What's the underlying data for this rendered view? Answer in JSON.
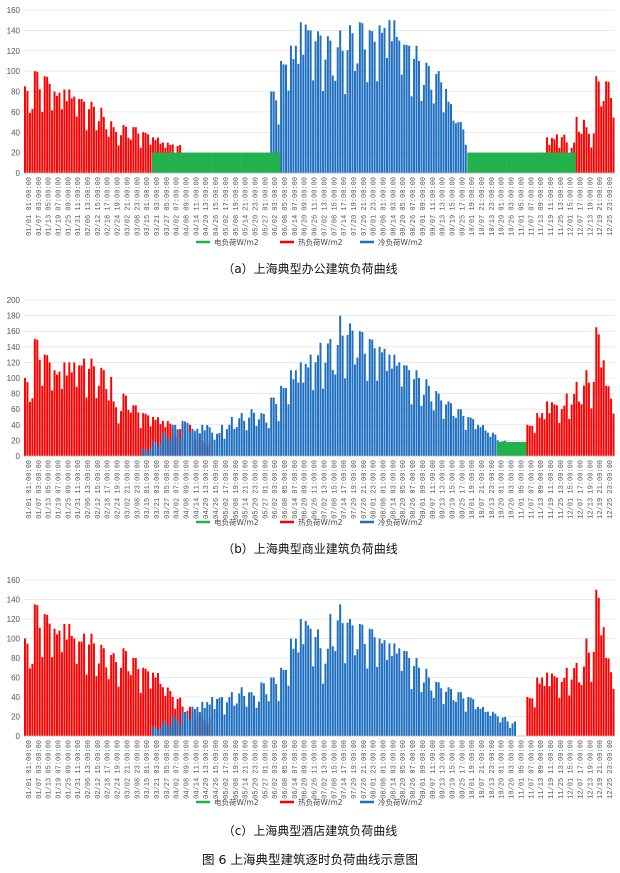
{
  "figure_caption": "图 6 上海典型建筑逐时负荷曲线示意图",
  "colors": {
    "electric": "#22b24c",
    "heat": "#ff0000",
    "cool": "#1f6fc0",
    "grid": "#e4e4e4",
    "axis": "#bbbbbb"
  },
  "chart_data": [
    {
      "type": "bar",
      "caption": "（a）上海典型办公建筑负荷曲线",
      "ylim": [
        0,
        160
      ],
      "yticks": [
        0,
        20,
        40,
        60,
        80,
        100,
        120,
        140,
        160
      ],
      "xtick_labels": [
        "01/01 01:00:00",
        "01/07 03:00:00",
        "01/13 05:00:00",
        "01/19 07:00:00",
        "01/25 09:00:00",
        "01/31 11:00:00",
        "02/06 13:00:00",
        "02/12 15:00:00",
        "02/18 17:00:00",
        "02/24 19:00:00",
        "03/02 21:00:00",
        "03/08 23:00:00",
        "03/15 01:00:00",
        "03/21 03:00:00",
        "03/27 05:00:00",
        "04/02 07:00:00",
        "04/08 09:00:00",
        "04/14 11:00:00",
        "04/20 13:00:00",
        "04/26 15:00:00",
        "05/02 17:00:00",
        "05/08 19:00:00",
        "05/14 21:00:00",
        "05/20 23:00:00",
        "05/27 01:00:00",
        "06/02 03:00:00",
        "06/08 05:00:00",
        "06/14 07:00:00",
        "06/20 09:00:00",
        "06/26 11:00:00",
        "07/02 13:00:00",
        "07/08 15:00:00",
        "07/14 17:00:00",
        "07/20 19:00:00",
        "07/26 21:00:00",
        "08/01 23:00:00",
        "08/08 01:00:00",
        "08/14 03:00:00",
        "08/20 05:00:00",
        "08/26 07:00:00",
        "09/01 09:00:00",
        "09/07 11:00:00",
        "09/13 13:00:00",
        "09/19 15:00:00",
        "09/25 17:00:00",
        "10/01 19:00:00",
        "10/07 21:00:00",
        "10/13 23:00:00",
        "10/20 01:00:00",
        "10/26 03:00:00",
        "11/01 05:00:00",
        "11/07 07:00:00",
        "11/13 09:00:00",
        "11/19 11:00:00",
        "11/25 13:00:00",
        "12/01 15:00:00",
        "12/07 17:00:00",
        "12/13 19:00:00",
        "12/19 21:00:00",
        "12/25 23:00:00"
      ],
      "series": [
        {
          "name": "电负荷W/m2",
          "color": "#22b24c",
          "values": [
            0,
            0,
            0,
            0,
            0,
            0,
            0,
            0,
            0,
            0,
            0,
            0,
            0,
            20,
            20,
            20,
            20,
            20,
            20,
            20,
            20,
            20,
            20,
            20,
            20,
            20,
            0,
            0,
            0,
            0,
            0,
            0,
            0,
            0,
            0,
            0,
            0,
            0,
            0,
            0,
            0,
            0,
            0,
            0,
            0,
            20,
            20,
            20,
            20,
            20,
            20,
            20,
            20,
            20,
            20,
            20,
            0,
            0,
            0,
            0
          ]
        },
        {
          "name": "热负荷W/m2",
          "color": "#ff0000",
          "values": [
            85,
            100,
            95,
            80,
            82,
            75,
            70,
            65,
            55,
            45,
            47,
            45,
            40,
            35,
            30,
            28,
            10,
            5,
            0,
            0,
            0,
            0,
            0,
            0,
            0,
            0,
            0,
            0,
            0,
            0,
            0,
            0,
            0,
            0,
            0,
            0,
            0,
            0,
            0,
            0,
            0,
            0,
            0,
            0,
            0,
            0,
            0,
            0,
            0,
            0,
            0,
            0,
            20,
            35,
            38,
            30,
            55,
            45,
            95,
            90
          ]
        },
        {
          "name": "冷负荷W/m2",
          "color": "#1f6fc0",
          "values": [
            0,
            0,
            0,
            0,
            0,
            0,
            0,
            0,
            0,
            0,
            0,
            0,
            0,
            0,
            0,
            0,
            0,
            0,
            0,
            0,
            0,
            0,
            0,
            0,
            0,
            80,
            110,
            125,
            148,
            140,
            135,
            130,
            140,
            145,
            148,
            140,
            145,
            150,
            130,
            125,
            110,
            105,
            100,
            70,
            50,
            0,
            0,
            0,
            0,
            0,
            0,
            0,
            0,
            0,
            0,
            0,
            0,
            0,
            0,
            0
          ]
        }
      ]
    },
    {
      "type": "bar",
      "caption": "（b）上海典型商业建筑负荷曲线",
      "ylim": [
        0,
        200
      ],
      "yticks": [
        0,
        20,
        40,
        60,
        80,
        100,
        120,
        140,
        160,
        180,
        200
      ],
      "xtick_labels": [
        "01/01 01:00:00",
        "01/07 03:00:00",
        "01/13 05:00:00",
        "01/19 07:00:00",
        "01/25 09:00:00",
        "01/31 11:00:00",
        "02/06 13:00:00",
        "02/12 15:00:00",
        "02/18 17:00:00",
        "02/24 19:00:00",
        "03/02 21:00:00",
        "03/08 23:00:00",
        "03/15 01:00:00",
        "03/21 03:00:00",
        "03/27 05:00:00",
        "04/02 07:00:00",
        "04/08 09:00:00",
        "04/14 11:00:00",
        "04/20 13:00:00",
        "04/26 15:00:00",
        "05/02 17:00:00",
        "05/08 19:00:00",
        "05/14 21:00:00",
        "05/20 23:00:00",
        "05/27 01:00:00",
        "06/02 03:00:00",
        "06/08 05:00:00",
        "06/14 07:00:00",
        "06/20 09:00:00",
        "06/26 11:00:00",
        "07/02 13:00:00",
        "07/08 15:00:00",
        "07/14 17:00:00",
        "07/20 19:00:00",
        "07/26 21:00:00",
        "08/01 23:00:00",
        "08/08 01:00:00",
        "08/14 03:00:00",
        "08/20 05:00:00",
        "08/26 07:00:00",
        "09/01 09:00:00",
        "09/07 11:00:00",
        "09/13 13:00:00",
        "09/19 15:00:00",
        "09/25 17:00:00",
        "10/01 19:00:00",
        "10/07 21:00:00",
        "10/13 23:00:00",
        "10/20 01:00:00",
        "10/26 03:00:00",
        "11/01 05:00:00",
        "11/07 07:00:00",
        "11/13 09:00:00",
        "11/19 11:00:00",
        "11/25 13:00:00",
        "12/01 15:00:00",
        "12/07 17:00:00",
        "12/13 19:00:00",
        "12/19 21:00:00",
        "12/25 23:00:00"
      ],
      "series": [
        {
          "name": "电负荷W/m2",
          "color": "#22b24c",
          "values": [
            0,
            0,
            0,
            0,
            0,
            0,
            0,
            0,
            0,
            0,
            0,
            0,
            0,
            0,
            0,
            0,
            0,
            0,
            0,
            0,
            0,
            0,
            0,
            0,
            0,
            0,
            0,
            0,
            0,
            0,
            0,
            0,
            0,
            0,
            0,
            0,
            0,
            0,
            0,
            0,
            0,
            0,
            0,
            0,
            0,
            0,
            0,
            0,
            18,
            18,
            18,
            0,
            0,
            0,
            0,
            0,
            0,
            0,
            0,
            0
          ]
        },
        {
          "name": "热负荷W/m2",
          "color": "#ff0000",
          "values": [
            100,
            150,
            130,
            110,
            120,
            120,
            125,
            115,
            110,
            70,
            80,
            65,
            55,
            50,
            45,
            35,
            40,
            30,
            20,
            0,
            0,
            0,
            0,
            0,
            0,
            0,
            0,
            0,
            0,
            0,
            0,
            0,
            0,
            0,
            0,
            0,
            0,
            0,
            0,
            0,
            0,
            0,
            0,
            0,
            0,
            0,
            0,
            0,
            0,
            0,
            0,
            40,
            55,
            70,
            65,
            80,
            95,
            110,
            165,
            90
          ]
        },
        {
          "name": "冷负荷W/m2",
          "color": "#1f6fc0",
          "values": [
            0,
            0,
            0,
            0,
            0,
            0,
            0,
            0,
            0,
            0,
            0,
            0,
            10,
            20,
            30,
            40,
            45,
            35,
            40,
            30,
            40,
            50,
            55,
            60,
            55,
            75,
            90,
            110,
            120,
            130,
            145,
            150,
            180,
            170,
            160,
            150,
            140,
            130,
            120,
            110,
            100,
            90,
            80,
            70,
            60,
            50,
            40,
            30,
            20,
            10,
            0,
            0,
            0,
            0,
            0,
            0,
            0,
            0,
            0,
            0
          ]
        }
      ]
    },
    {
      "type": "bar",
      "caption": "（c）上海典型酒店建筑负荷曲线",
      "ylim": [
        0,
        160
      ],
      "yticks": [
        0,
        20,
        40,
        60,
        80,
        100,
        120,
        140,
        160
      ],
      "xtick_labels": [
        "01/01 01:00:00",
        "01/07 03:00:00",
        "01/13 05:00:00",
        "01/19 07:00:00",
        "01/25 09:00:00",
        "01/31 11:00:00",
        "02/06 13:00:00",
        "02/12 15:00:00",
        "02/18 17:00:00",
        "02/24 19:00:00",
        "03/02 21:00:00",
        "03/08 23:00:00",
        "03/15 01:00:00",
        "03/21 03:00:00",
        "03/27 05:00:00",
        "04/02 07:00:00",
        "04/08 09:00:00",
        "04/14 11:00:00",
        "04/20 13:00:00",
        "04/26 15:00:00",
        "05/02 17:00:00",
        "05/08 19:00:00",
        "05/14 21:00:00",
        "05/20 23:00:00",
        "05/27 01:00:00",
        "06/02 03:00:00",
        "06/08 05:00:00",
        "06/14 07:00:00",
        "06/20 09:00:00",
        "06/26 11:00:00",
        "07/02 13:00:00",
        "07/08 15:00:00",
        "07/14 17:00:00",
        "07/20 19:00:00",
        "07/26 21:00:00",
        "08/01 23:00:00",
        "08/08 01:00:00",
        "08/14 03:00:00",
        "08/20 05:00:00",
        "08/26 07:00:00",
        "09/01 09:00:00",
        "09/07 11:00:00",
        "09/13 13:00:00",
        "09/19 15:00:00",
        "09/25 17:00:00",
        "10/01 19:00:00",
        "10/07 21:00:00",
        "10/13 23:00:00",
        "10/20 01:00:00",
        "10/26 03:00:00",
        "11/01 05:00:00",
        "11/07 07:00:00",
        "11/13 09:00:00",
        "11/19 11:00:00",
        "11/25 13:00:00",
        "12/01 15:00:00",
        "12/07 17:00:00",
        "12/13 19:00:00",
        "12/19 21:00:00",
        "12/25 23:00:00"
      ],
      "series": [
        {
          "name": "电负荷W/m2",
          "color": "#22b24c",
          "values": [
            0,
            0,
            0,
            0,
            0,
            0,
            0,
            0,
            0,
            0,
            0,
            0,
            0,
            0,
            0,
            0,
            0,
            0,
            0,
            0,
            0,
            0,
            0,
            0,
            0,
            0,
            0,
            0,
            0,
            0,
            0,
            0,
            0,
            0,
            0,
            0,
            0,
            0,
            0,
            0,
            0,
            0,
            0,
            0,
            0,
            0,
            0,
            0,
            0,
            0,
            0,
            0,
            0,
            0,
            0,
            0,
            0,
            0,
            0,
            0
          ]
        },
        {
          "name": "热负荷W/m2",
          "color": "#ff0000",
          "values": [
            100,
            135,
            125,
            110,
            115,
            100,
            105,
            95,
            90,
            85,
            90,
            80,
            70,
            65,
            50,
            40,
            30,
            25,
            20,
            0,
            0,
            0,
            0,
            0,
            0,
            0,
            0,
            0,
            0,
            0,
            0,
            0,
            0,
            0,
            0,
            0,
            0,
            0,
            0,
            0,
            0,
            0,
            0,
            0,
            0,
            0,
            0,
            0,
            0,
            0,
            0,
            40,
            60,
            65,
            60,
            70,
            75,
            100,
            150,
            80
          ]
        },
        {
          "name": "冷负荷W/m2",
          "color": "#1f6fc0",
          "values": [
            0,
            0,
            0,
            0,
            0,
            0,
            0,
            0,
            0,
            0,
            0,
            0,
            0,
            10,
            15,
            20,
            25,
            30,
            35,
            40,
            40,
            45,
            50,
            45,
            55,
            60,
            70,
            100,
            120,
            110,
            90,
            125,
            135,
            120,
            115,
            110,
            100,
            95,
            90,
            80,
            70,
            60,
            55,
            50,
            45,
            40,
            30,
            25,
            20,
            15,
            0,
            0,
            0,
            0,
            0,
            0,
            0,
            0,
            0,
            0
          ]
        }
      ]
    }
  ]
}
